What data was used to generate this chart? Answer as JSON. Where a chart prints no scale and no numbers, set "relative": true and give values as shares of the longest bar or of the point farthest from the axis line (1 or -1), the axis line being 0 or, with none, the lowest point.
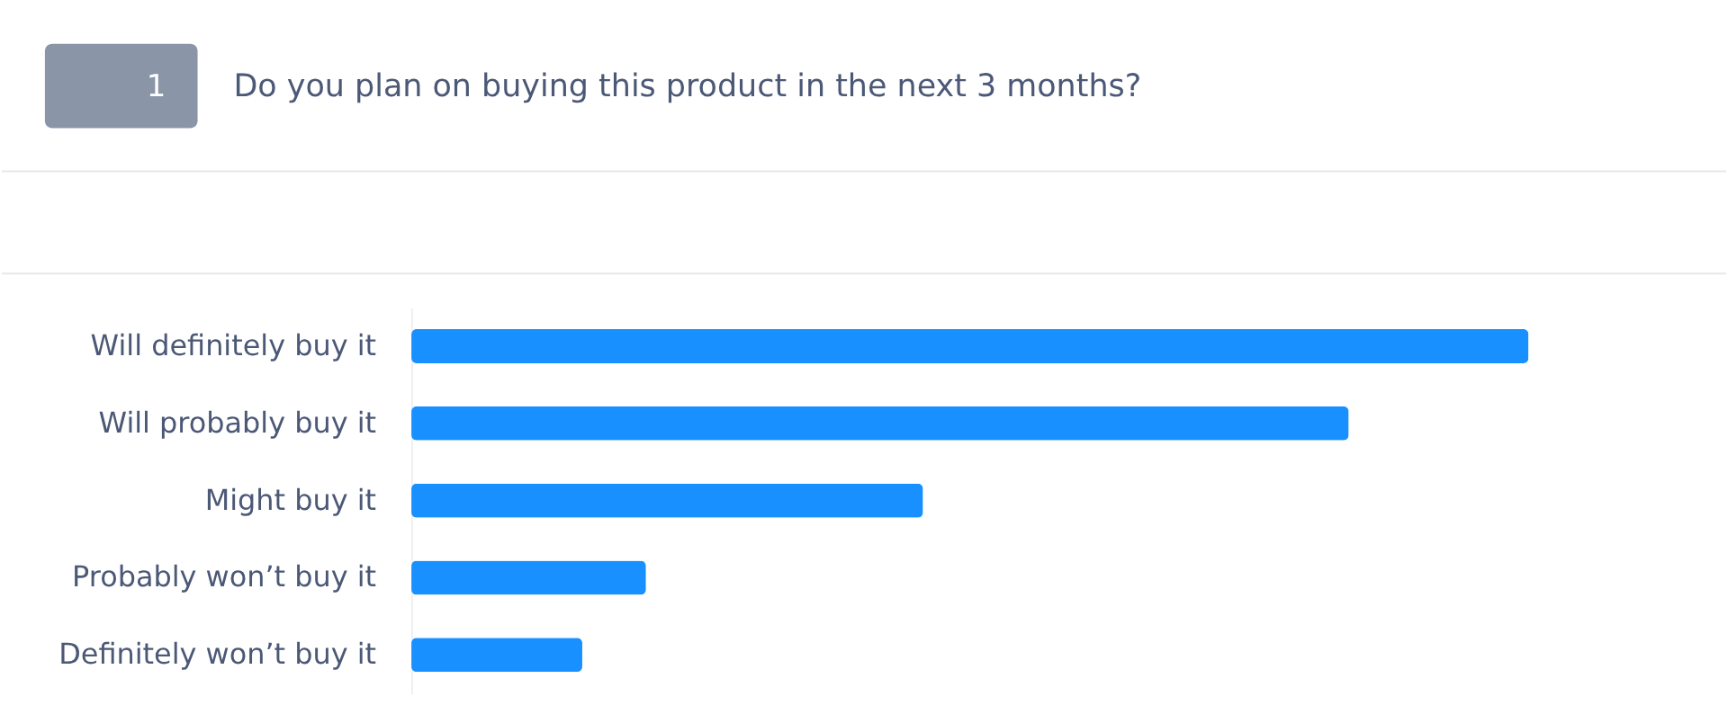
{
  "chart_data": {
    "type": "bar",
    "orientation": "horizontal",
    "relative": true,
    "title": "Do you plan on buying this product in the next 3 months?",
    "annotations": [
      "1"
    ],
    "categories": [
      "Will definitely buy it",
      "Will probably buy it",
      "Might buy it",
      "Probably won’t buy it",
      "Definitely won’t buy it"
    ],
    "values": [
      1,
      0.839,
      0.458,
      0.21,
      0.153
    ],
    "color": "#1890ff"
  }
}
